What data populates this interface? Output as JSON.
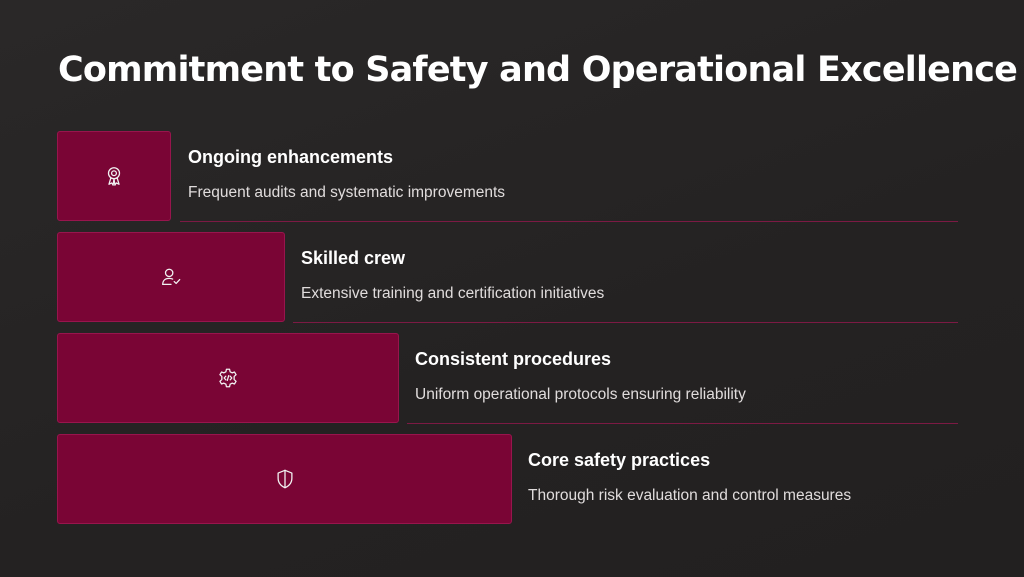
{
  "slide": {
    "title": "Commitment to Safety and Operational Excellence",
    "accent_color": "#7a0535",
    "steps": [
      {
        "heading": "Ongoing enhancements",
        "description": "Frequent audits and systematic improvements",
        "icon": "award-ribbon-icon"
      },
      {
        "heading": "Skilled crew",
        "description": "Extensive training and certification initiatives",
        "icon": "user-check-icon"
      },
      {
        "heading": "Consistent procedures",
        "description": "Uniform operational protocols ensuring reliability",
        "icon": "code-gear-icon"
      },
      {
        "heading": "Core safety practices",
        "description": "Thorough risk evaluation and control measures",
        "icon": "shield-icon"
      }
    ]
  }
}
